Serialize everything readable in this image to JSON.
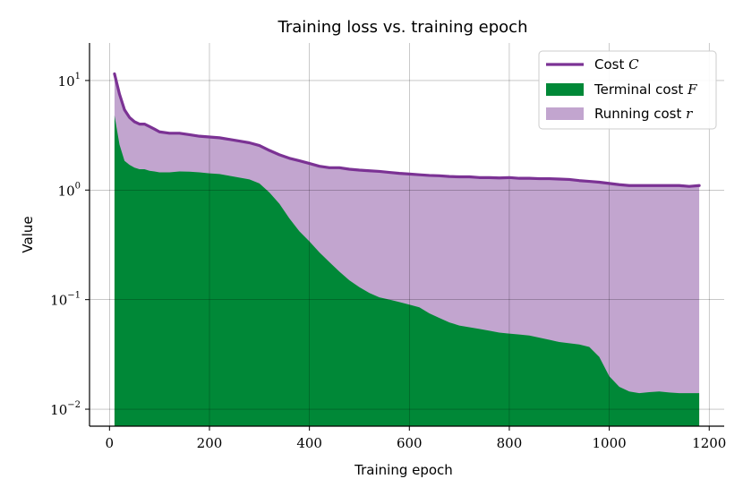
{
  "chart_data": {
    "type": "area",
    "title": "Training loss vs. training epoch",
    "xlabel": "Training epoch",
    "ylabel": "Value",
    "xlim": [
      -40,
      1230
    ],
    "ylim": [
      0.007,
      22
    ],
    "yscale": "log",
    "grid": true,
    "legend_position": "upper right",
    "x_ticks": [
      0,
      200,
      400,
      600,
      800,
      1000,
      1200
    ],
    "x_tick_labels": [
      "0",
      "200",
      "400",
      "600",
      "800",
      "1000",
      "1200"
    ],
    "y_ticks": [
      {
        "value": 10,
        "base": "10",
        "exp": "1"
      },
      {
        "value": 1,
        "base": "10",
        "exp": "0"
      },
      {
        "value": 0.1,
        "base": "10",
        "exp": "−1"
      },
      {
        "value": 0.01,
        "base": "10",
        "exp": "−2"
      }
    ],
    "x": [
      10,
      20,
      30,
      40,
      50,
      60,
      70,
      80,
      90,
      100,
      120,
      140,
      160,
      180,
      200,
      220,
      240,
      260,
      280,
      300,
      320,
      340,
      360,
      380,
      400,
      420,
      440,
      460,
      480,
      500,
      520,
      540,
      560,
      580,
      600,
      620,
      640,
      660,
      680,
      700,
      720,
      740,
      760,
      780,
      800,
      820,
      840,
      860,
      880,
      900,
      920,
      940,
      960,
      980,
      1000,
      1020,
      1040,
      1060,
      1080,
      1100,
      1120,
      1140,
      1160,
      1180
    ],
    "series": [
      {
        "name": "Cost",
        "math": "C",
        "color": "#7b3294",
        "style": "line",
        "values": [
          11.5,
          7.5,
          5.4,
          4.6,
          4.2,
          4.0,
          4.0,
          3.8,
          3.6,
          3.4,
          3.3,
          3.3,
          3.2,
          3.1,
          3.05,
          3.0,
          2.9,
          2.8,
          2.7,
          2.55,
          2.3,
          2.1,
          1.95,
          1.85,
          1.75,
          1.65,
          1.6,
          1.6,
          1.55,
          1.52,
          1.5,
          1.48,
          1.45,
          1.42,
          1.4,
          1.38,
          1.36,
          1.35,
          1.33,
          1.32,
          1.32,
          1.3,
          1.3,
          1.29,
          1.3,
          1.28,
          1.28,
          1.27,
          1.27,
          1.26,
          1.25,
          1.22,
          1.2,
          1.18,
          1.15,
          1.12,
          1.1,
          1.1,
          1.1,
          1.1,
          1.1,
          1.1,
          1.08,
          1.1
        ]
      },
      {
        "name": "Terminal cost",
        "math": "F",
        "color": "#008837",
        "style": "area",
        "values": [
          4.8,
          2.6,
          1.85,
          1.7,
          1.6,
          1.55,
          1.55,
          1.5,
          1.48,
          1.45,
          1.45,
          1.48,
          1.47,
          1.45,
          1.42,
          1.4,
          1.35,
          1.3,
          1.25,
          1.15,
          0.95,
          0.75,
          0.55,
          0.42,
          0.34,
          0.27,
          0.22,
          0.18,
          0.15,
          0.13,
          0.115,
          0.105,
          0.1,
          0.095,
          0.09,
          0.085,
          0.075,
          0.068,
          0.062,
          0.058,
          0.056,
          0.054,
          0.052,
          0.05,
          0.049,
          0.048,
          0.047,
          0.045,
          0.043,
          0.041,
          0.04,
          0.039,
          0.037,
          0.03,
          0.02,
          0.016,
          0.0145,
          0.014,
          0.0143,
          0.0145,
          0.0142,
          0.014,
          0.014,
          0.014
        ]
      },
      {
        "name": "Running cost",
        "math": "r",
        "color": "#c2a5cf",
        "style": "stacked-area",
        "note_values_are_cost_minus_terminal": true
      }
    ]
  }
}
